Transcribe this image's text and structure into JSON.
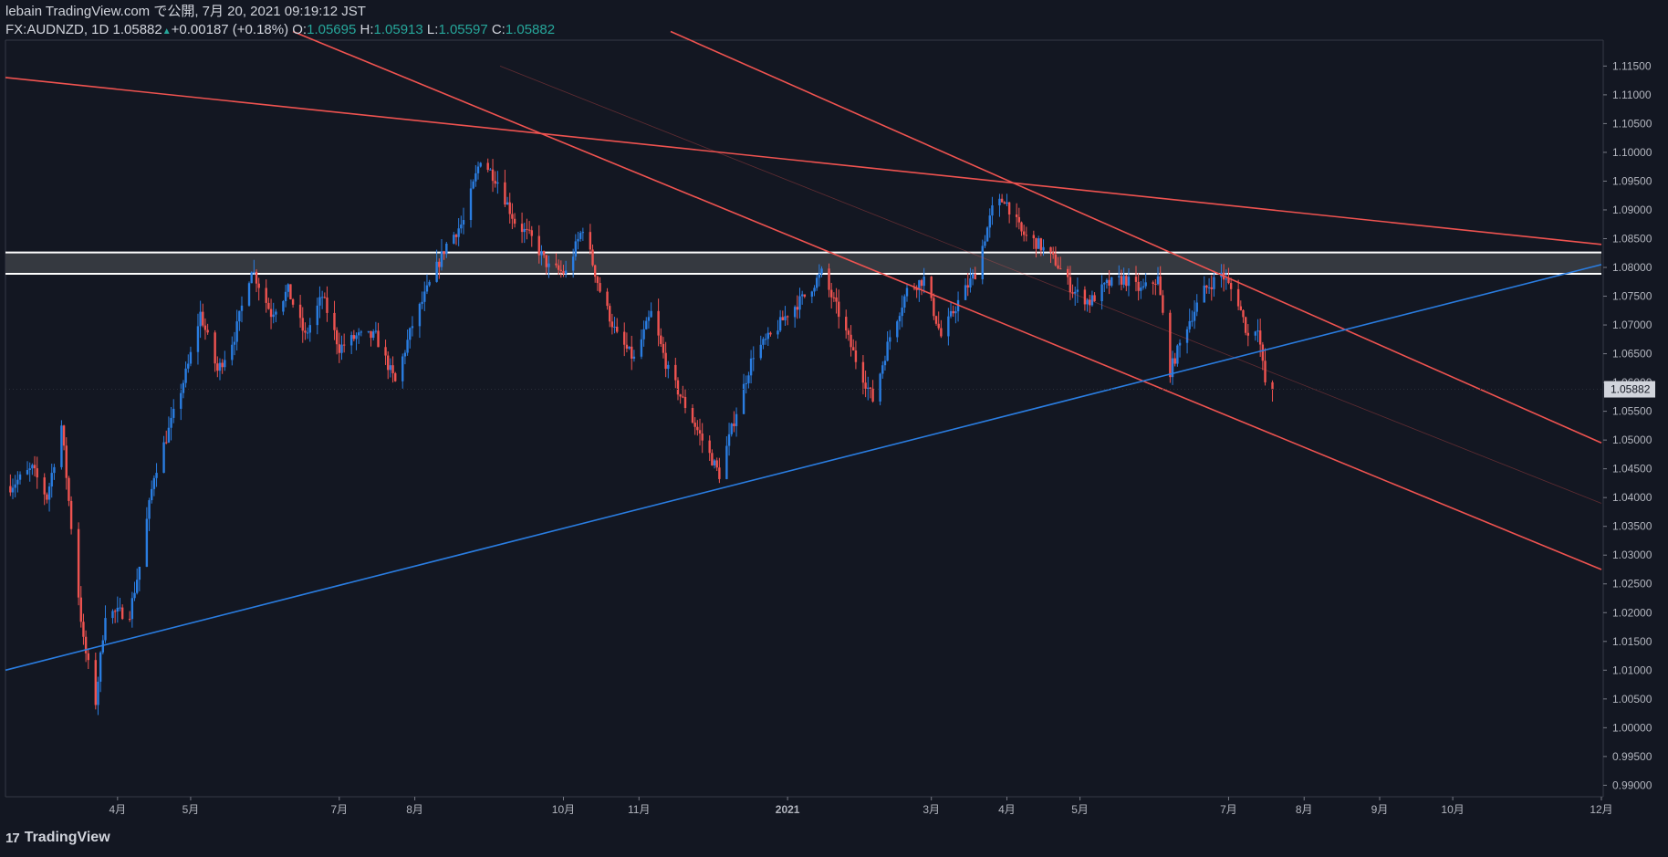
{
  "header": {
    "line1": "lebain TradingView.com で公開, 7月 20, 2021 09:19:12 JST",
    "symbol": "FX:AUDNZD, 1D",
    "last": "1.05882",
    "arrow": "▲",
    "change": "+0.00187 (+0.18%)",
    "o_label": "O:",
    "o_val": "1.05695",
    "h_label": "H:",
    "h_val": "1.05913",
    "l_label": "L:",
    "l_val": "1.05597",
    "c_label": "C:",
    "c_val": "1.05882"
  },
  "footer": {
    "logo_mark": "17",
    "logo_text": "TradingView"
  },
  "colors": {
    "background": "#131722",
    "up": "#2a7de1",
    "down": "#ef5350",
    "red_line": "#ef5350",
    "blue_line": "#2a7de1",
    "zone_line": "#ffffff",
    "zone_fill": "#3a3d44",
    "axis_text": "#b2b5be",
    "price_tag_bg": "#d1d4dc"
  },
  "chart_data": {
    "type": "candlestick",
    "symbol": "FX:AUDNZD",
    "interval": "1D",
    "ylim": [
      0.988,
      1.1195
    ],
    "y_ticks": [
      "1.11500",
      "1.11000",
      "1.10500",
      "1.10000",
      "1.09500",
      "1.09000",
      "1.08500",
      "1.08000",
      "1.07500",
      "1.07000",
      "1.06500",
      "1.06000",
      "1.05500",
      "1.05000",
      "1.04500",
      "1.04000",
      "1.03500",
      "1.03000",
      "1.02500",
      "1.02000",
      "1.01500",
      "1.01000",
      "1.00500",
      "1.00000",
      "0.99500",
      "0.99000"
    ],
    "x_ticks": [
      {
        "label": "4月",
        "date": "2020-04-01"
      },
      {
        "label": "5月",
        "date": "2020-05-01"
      },
      {
        "label": "7月",
        "date": "2020-07-01"
      },
      {
        "label": "8月",
        "date": "2020-08-01"
      },
      {
        "label": "10月",
        "date": "2020-10-01"
      },
      {
        "label": "11月",
        "date": "2020-11-01"
      },
      {
        "label": "2021",
        "date": "2021-01-01"
      },
      {
        "label": "3月",
        "date": "2021-03-01"
      },
      {
        "label": "4月",
        "date": "2021-04-01"
      },
      {
        "label": "5月",
        "date": "2021-05-01"
      },
      {
        "label": "7月",
        "date": "2021-07-01"
      },
      {
        "label": "8月",
        "date": "2021-08-01"
      },
      {
        "label": "9月",
        "date": "2021-09-01"
      },
      {
        "label": "10月",
        "date": "2021-10-01"
      },
      {
        "label": "12月",
        "date": "2021-12-01"
      }
    ],
    "x_range": [
      "2020-02-15",
      "2021-12-01"
    ],
    "last_price_label": "1.05882",
    "last_price": 1.05882,
    "price_path": [
      [
        "2020-02-17",
        1.042
      ],
      [
        "2020-02-26",
        1.045
      ],
      [
        "2020-03-03",
        1.04
      ],
      [
        "2020-03-09",
        1.0525
      ],
      [
        "2020-03-13",
        1.035
      ],
      [
        "2020-03-18",
        1.015
      ],
      [
        "2020-03-23",
        1.0045
      ],
      [
        "2020-03-27",
        1.02
      ],
      [
        "2020-04-06",
        1.02
      ],
      [
        "2020-04-10",
        1.028
      ],
      [
        "2020-04-16",
        1.044
      ],
      [
        "2020-04-23",
        1.053
      ],
      [
        "2020-04-30",
        1.063
      ],
      [
        "2020-05-05",
        1.072
      ],
      [
        "2020-05-12",
        1.062
      ],
      [
        "2020-05-19",
        1.068
      ],
      [
        "2020-05-26",
        1.08
      ],
      [
        "2020-06-03",
        1.072
      ],
      [
        "2020-06-10",
        1.076
      ],
      [
        "2020-06-17",
        1.068
      ],
      [
        "2020-06-24",
        1.075
      ],
      [
        "2020-07-01",
        1.066
      ],
      [
        "2020-07-08",
        1.068
      ],
      [
        "2020-07-16",
        1.068
      ],
      [
        "2020-07-24",
        1.06
      ],
      [
        "2020-07-31",
        1.07
      ],
      [
        "2020-08-07",
        1.077
      ],
      [
        "2020-08-14",
        1.084
      ],
      [
        "2020-08-21",
        1.088
      ],
      [
        "2020-08-28",
        1.099
      ],
      [
        "2020-09-04",
        1.095
      ],
      [
        "2020-09-11",
        1.088
      ],
      [
        "2020-09-18",
        1.085
      ],
      [
        "2020-09-25",
        1.08
      ],
      [
        "2020-10-02",
        1.079
      ],
      [
        "2020-10-09",
        1.087
      ],
      [
        "2020-10-16",
        1.076
      ],
      [
        "2020-10-23",
        1.068
      ],
      [
        "2020-10-30",
        1.064
      ],
      [
        "2020-11-06",
        1.072
      ],
      [
        "2020-11-13",
        1.062
      ],
      [
        "2020-11-20",
        1.056
      ],
      [
        "2020-11-27",
        1.05
      ],
      [
        "2020-12-04",
        1.044
      ],
      [
        "2020-12-11",
        1.055
      ],
      [
        "2020-12-18",
        1.065
      ],
      [
        "2020-12-25",
        1.068
      ],
      [
        "2021-01-01",
        1.072
      ],
      [
        "2021-01-08",
        1.075
      ],
      [
        "2021-01-15",
        1.079
      ],
      [
        "2021-01-22",
        1.072
      ],
      [
        "2021-01-29",
        1.064
      ],
      [
        "2021-02-05",
        1.057
      ],
      [
        "2021-02-12",
        1.068
      ],
      [
        "2021-02-19",
        1.076
      ],
      [
        "2021-02-26",
        1.078
      ],
      [
        "2021-03-05",
        1.068
      ],
      [
        "2021-03-12",
        1.074
      ],
      [
        "2021-03-19",
        1.079
      ],
      [
        "2021-03-26",
        1.09
      ],
      [
        "2021-03-31",
        1.092
      ],
      [
        "2021-04-07",
        1.086
      ],
      [
        "2021-04-14",
        1.084
      ],
      [
        "2021-04-21",
        1.081
      ],
      [
        "2021-04-28",
        1.076
      ],
      [
        "2021-05-05",
        1.074
      ],
      [
        "2021-05-12",
        1.077
      ],
      [
        "2021-05-19",
        1.078
      ],
      [
        "2021-05-26",
        1.076
      ],
      [
        "2021-06-02",
        1.078
      ],
      [
        "2021-06-07",
        1.062
      ],
      [
        "2021-06-14",
        1.07
      ],
      [
        "2021-06-21",
        1.076
      ],
      [
        "2021-06-28",
        1.079
      ],
      [
        "2021-07-05",
        1.074
      ],
      [
        "2021-07-09",
        1.068
      ],
      [
        "2021-07-13",
        1.07
      ],
      [
        "2021-07-15",
        1.063
      ],
      [
        "2021-07-17",
        1.057
      ],
      [
        "2021-07-19",
        1.05882
      ]
    ],
    "drawings": [
      {
        "kind": "trendline",
        "color": "red",
        "from": [
          "2020-02-15",
          1.113
        ],
        "to": [
          "2021-12-01",
          1.084
        ]
      },
      {
        "kind": "trendline",
        "color": "red",
        "from": [
          "2020-06-12",
          1.121
        ],
        "to": [
          "2021-12-01",
          1.0275
        ]
      },
      {
        "kind": "trendline",
        "color": "red",
        "from": [
          "2020-11-14",
          1.121
        ],
        "to": [
          "2021-12-01",
          1.0495
        ]
      },
      {
        "kind": "trendline",
        "color": "red_faint",
        "from": [
          "2020-09-05",
          1.115
        ],
        "to": [
          "2021-12-01",
          1.039
        ]
      },
      {
        "kind": "trendline",
        "color": "blue",
        "from": [
          "2020-02-15",
          1.01
        ],
        "to": [
          "2021-12-01",
          1.0805
        ]
      },
      {
        "kind": "zone",
        "top": 1.0826,
        "bottom": 1.0789
      }
    ]
  }
}
